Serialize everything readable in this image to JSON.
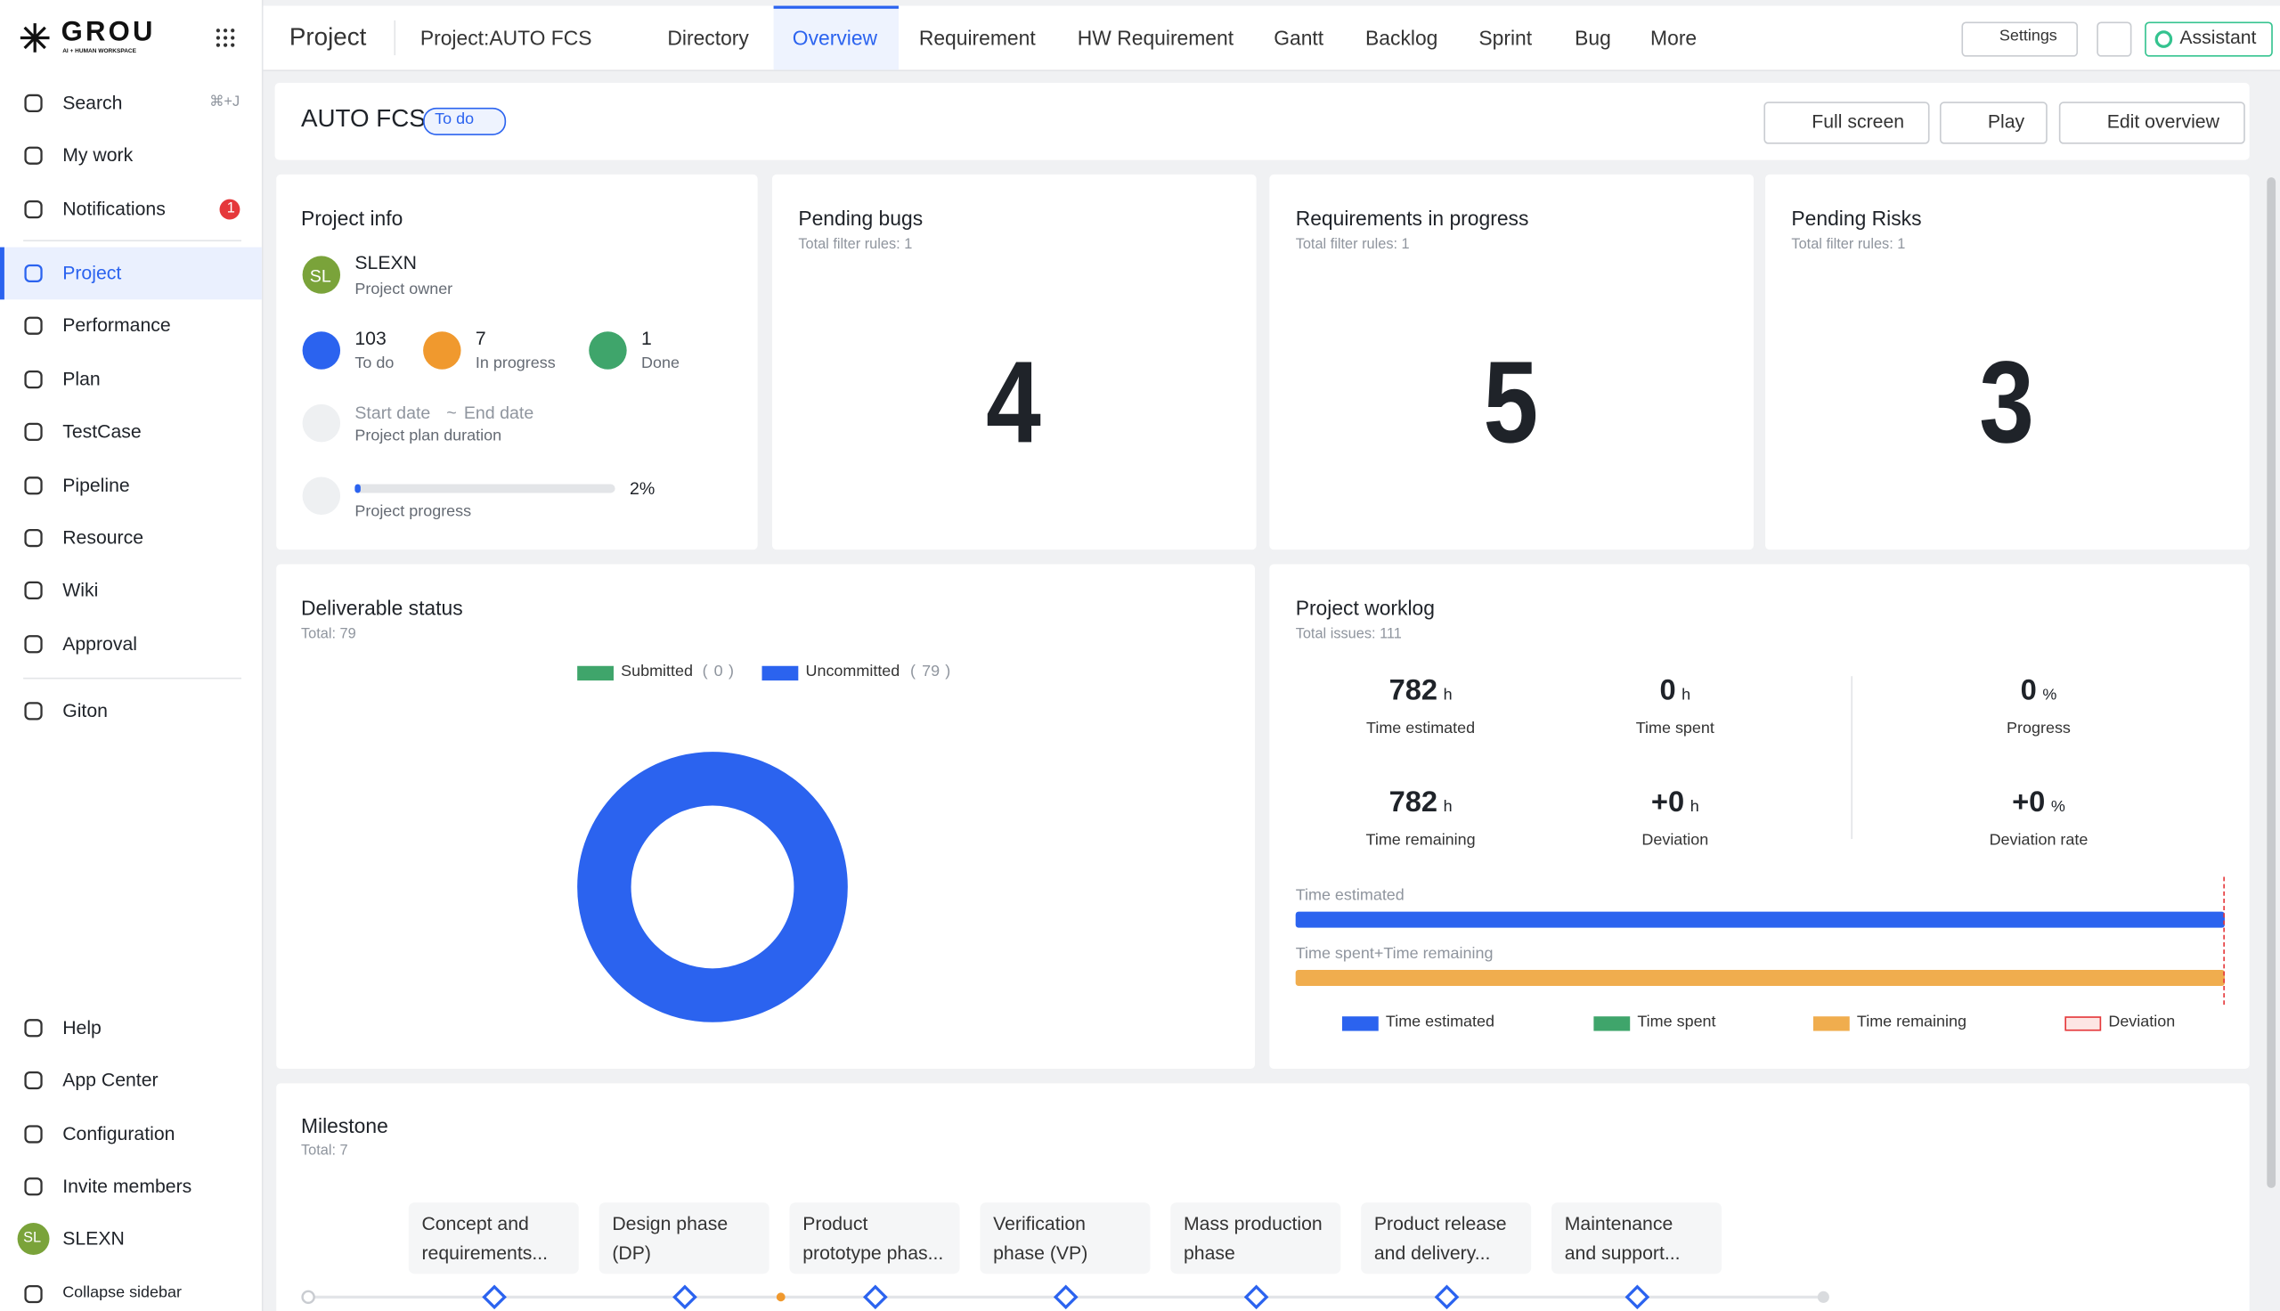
{
  "brand": {
    "name": "GROU",
    "tagline": "AI + HUMAN WORKSPACE"
  },
  "sidebar": {
    "items": [
      {
        "label": "Search",
        "shortcut": "⌘+J"
      },
      {
        "label": "My work"
      },
      {
        "label": "Notifications",
        "badge": 1
      },
      {
        "label": "Project",
        "active": true
      },
      {
        "label": "Performance"
      },
      {
        "label": "Plan"
      },
      {
        "label": "TestCase"
      },
      {
        "label": "Pipeline"
      },
      {
        "label": "Resource"
      },
      {
        "label": "Wiki"
      },
      {
        "label": "Approval"
      },
      {
        "label": "Giton"
      }
    ],
    "bottom": [
      {
        "label": "Help"
      },
      {
        "label": "App Center"
      },
      {
        "label": "Configuration"
      },
      {
        "label": "Invite members"
      },
      {
        "label": "SLEXN",
        "avatar": "SL"
      },
      {
        "label": "Collapse sidebar"
      }
    ]
  },
  "topbar": {
    "section": "Project",
    "project": "Project:AUTO FCS",
    "tabs": [
      "Directory",
      "Overview",
      "Requirement",
      "HW Requirement",
      "Gantt",
      "Backlog",
      "Sprint",
      "Bug"
    ],
    "active_tab": 1,
    "more": "More",
    "settings": "Settings",
    "assistant": "Assistant"
  },
  "header": {
    "title": "AUTO FCS",
    "status": "To do",
    "actions": [
      "Full screen",
      "Play",
      "Edit overview"
    ]
  },
  "project_info": {
    "title": "Project info",
    "owner_avatar": "SL",
    "owner": "SLEXN",
    "owner_role": "Project owner",
    "stats": [
      {
        "value": 103,
        "label": "To do",
        "color": "#2b63ef"
      },
      {
        "value": 7,
        "label": "In progress",
        "color": "#f0992e"
      },
      {
        "value": 1,
        "label": "Done",
        "color": "#3fa56b"
      }
    ],
    "start": "Start date",
    "separator": "~",
    "end": "End date",
    "duration_label": "Project plan duration",
    "progress": {
      "value": 2,
      "label": "2%"
    },
    "progress_label": "Project progress"
  },
  "metrics": [
    {
      "title": "Pending bugs",
      "subtitle": "Total filter rules: 1",
      "value": 4
    },
    {
      "title": "Requirements in progress",
      "subtitle": "Total filter rules: 1",
      "value": 5
    },
    {
      "title": "Pending Risks",
      "subtitle": "Total filter rules: 1",
      "value": 3
    }
  ],
  "deliverables": {
    "title": "Deliverable status",
    "total": "Total: 79",
    "series": [
      {
        "name": "Submitted",
        "value": 0,
        "color": "#3fa56b"
      },
      {
        "name": "Uncommitted",
        "value": 79,
        "color": "#2b63ef"
      }
    ]
  },
  "worklog": {
    "title": "Project worklog",
    "total": "Total issues: 111",
    "stats": [
      {
        "value": 782,
        "unit": "h",
        "label": "Time estimated"
      },
      {
        "value": 0,
        "unit": "h",
        "label": "Time spent"
      },
      {
        "value": 0,
        "unit": "%",
        "label": "Progress"
      },
      {
        "value": 782,
        "unit": "h",
        "label": "Time remaining"
      },
      {
        "value": "+0",
        "unit": "h",
        "label": "Deviation"
      },
      {
        "value": "+0",
        "unit": "%",
        "label": "Deviation rate"
      }
    ],
    "bars": [
      {
        "label": "Time estimated",
        "value": 782,
        "color": "#2b63ef"
      },
      {
        "label": "Time spent+Time remaining",
        "value": 782,
        "color": "#f0ad4e"
      }
    ],
    "legend": [
      {
        "name": "Time estimated",
        "color": "#2b63ef"
      },
      {
        "name": "Time spent",
        "color": "#3fa56b"
      },
      {
        "name": "Time remaining",
        "color": "#f0ad4e"
      },
      {
        "name": "Deviation",
        "color": "#fde6e4"
      }
    ]
  },
  "milestone": {
    "title": "Milestone",
    "total": "Total: 7",
    "items": [
      [
        "Concept and",
        "requirements..."
      ],
      [
        "Design phase",
        "(DP)"
      ],
      [
        "Product",
        "prototype phas..."
      ],
      [
        "Verification",
        "phase (VP)"
      ],
      [
        "Mass production",
        "phase"
      ],
      [
        "Product release",
        "and delivery..."
      ],
      [
        "Maintenance",
        "and support..."
      ]
    ]
  }
}
